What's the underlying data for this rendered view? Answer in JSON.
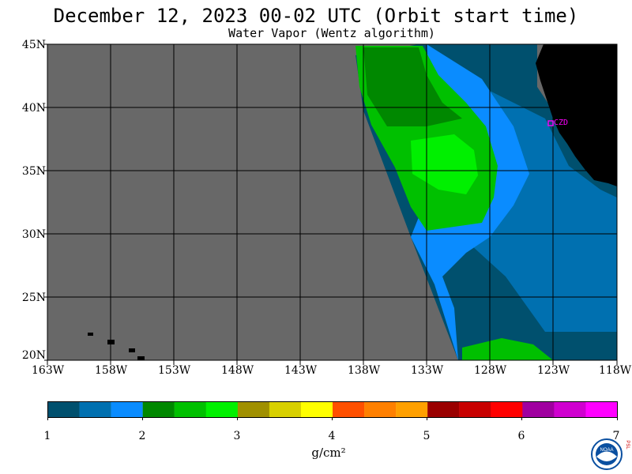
{
  "header": {
    "title": "December 12, 2023  00-02 UTC  (Orbit start time)",
    "subtitle": "Water Vapor (Wentz algorithm)"
  },
  "map": {
    "lat_labels": [
      "45N",
      "40N",
      "35N",
      "30N",
      "25N",
      "20N"
    ],
    "lon_labels": [
      "163W",
      "158W",
      "153W",
      "148W",
      "143W",
      "138W",
      "133W",
      "128W",
      "123W",
      "118W"
    ],
    "station_label": "CZD",
    "colors": {
      "no_data": "#686868",
      "land": "#000000",
      "grid": "#000000",
      "station": "#ff00ff"
    }
  },
  "colorbar": {
    "ticks": [
      "1",
      "2",
      "3",
      "4",
      "5",
      "6",
      "7"
    ],
    "units": "g/cm²",
    "colors": [
      "#00506e",
      "#0070b0",
      "#0a8cff",
      "#008800",
      "#00c000",
      "#00f000",
      "#a09000",
      "#d8d000",
      "#ffff00",
      "#ff5000",
      "#ff8000",
      "#ffa000",
      "#9a0000",
      "#c80000",
      "#ff0000",
      "#a000a0",
      "#d000d0",
      "#ff00ff"
    ]
  },
  "logo": {
    "text": "NOAA",
    "side_text": "PSL"
  }
}
